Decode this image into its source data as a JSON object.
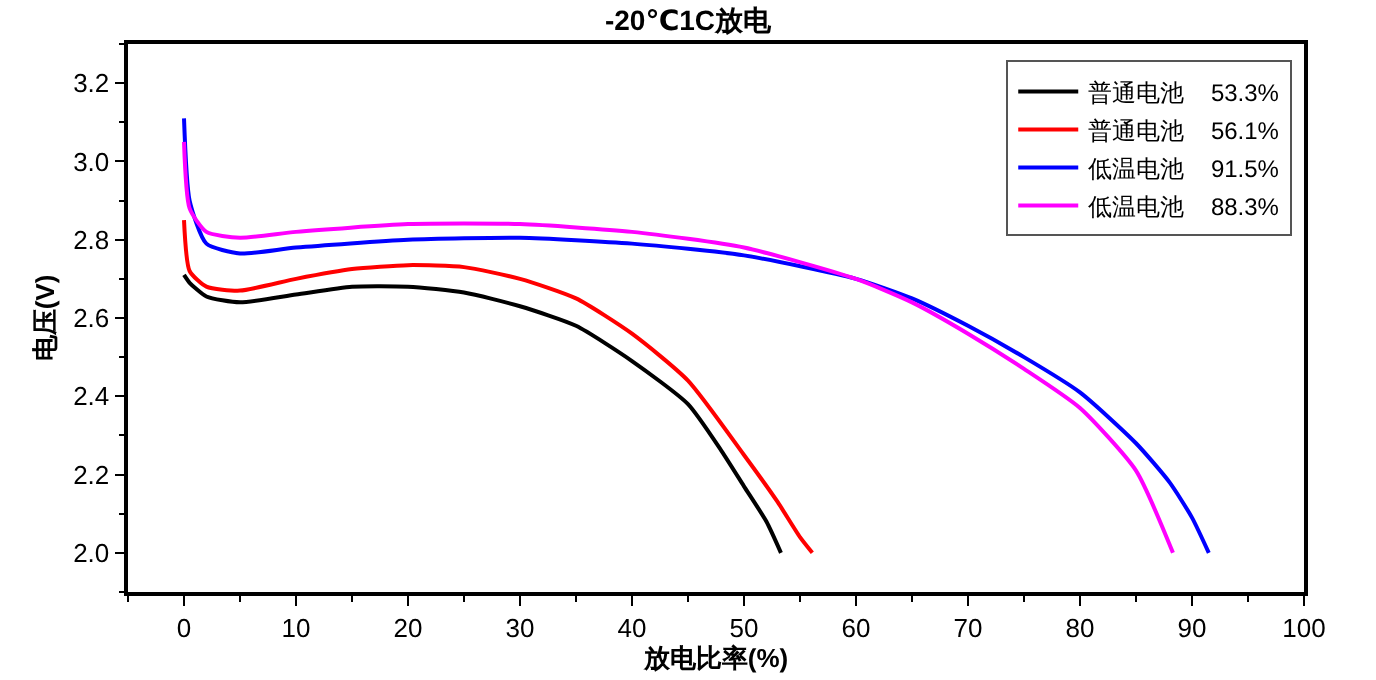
{
  "chart_data": {
    "type": "line",
    "title": "-20℃1C放电",
    "xlabel": "放电比率(%)",
    "ylabel": "电压(V)",
    "xlim": [
      -5,
      100
    ],
    "ylim": [
      1.9,
      3.3
    ],
    "xticks": [
      0,
      10,
      20,
      30,
      40,
      50,
      60,
      70,
      80,
      90,
      100
    ],
    "yticks": [
      {
        "value": 2.0,
        "label": "2.0"
      },
      {
        "value": 2.2,
        "label": "2.2"
      },
      {
        "value": 2.4,
        "label": "2.4"
      },
      {
        "value": 2.6,
        "label": "2.6"
      },
      {
        "value": 2.8,
        "label": "2.8"
      },
      {
        "value": 3.0,
        "label": "3.0"
      },
      {
        "value": 3.2,
        "label": "3.2"
      }
    ],
    "grid": false,
    "legend": "top right",
    "marker": "none",
    "line_style": "solid",
    "series": [
      {
        "name": "普通电池    53.3%",
        "color": "#000000",
        "x": [
          0,
          0.5,
          2,
          5,
          10,
          15,
          20,
          25,
          30,
          35,
          40,
          45,
          48,
          50,
          52,
          53.3
        ],
        "values": [
          2.71,
          2.69,
          2.655,
          2.64,
          2.66,
          2.68,
          2.68,
          2.665,
          2.63,
          2.58,
          2.49,
          2.38,
          2.26,
          2.17,
          2.08,
          2.0
        ]
      },
      {
        "name": "普通电池    56.1%",
        "color": "#ff0000",
        "x": [
          0,
          0.5,
          2,
          5,
          10,
          15,
          20,
          25,
          30,
          35,
          40,
          45,
          50,
          53,
          55,
          56.1
        ],
        "values": [
          2.85,
          2.72,
          2.68,
          2.67,
          2.7,
          2.725,
          2.735,
          2.73,
          2.7,
          2.65,
          2.56,
          2.44,
          2.25,
          2.13,
          2.04,
          2.0
        ]
      },
      {
        "name": "低温电池    91.5%",
        "color": "#0000ff",
        "x": [
          0,
          0.5,
          2,
          5,
          10,
          20,
          30,
          40,
          50,
          60,
          65,
          70,
          75,
          80,
          85,
          88,
          90,
          91.5
        ],
        "values": [
          3.11,
          2.9,
          2.79,
          2.765,
          2.78,
          2.8,
          2.805,
          2.79,
          2.76,
          2.7,
          2.65,
          2.58,
          2.5,
          2.41,
          2.28,
          2.18,
          2.09,
          2.0
        ]
      },
      {
        "name": "低温电池    88.3%",
        "color": "#ff00ff",
        "x": [
          0,
          0.5,
          2,
          5,
          10,
          20,
          30,
          40,
          50,
          60,
          65,
          70,
          75,
          80,
          85,
          88.3
        ],
        "values": [
          3.05,
          2.88,
          2.82,
          2.805,
          2.82,
          2.84,
          2.84,
          2.82,
          2.78,
          2.7,
          2.64,
          2.56,
          2.47,
          2.37,
          2.21,
          2.0
        ]
      }
    ]
  }
}
